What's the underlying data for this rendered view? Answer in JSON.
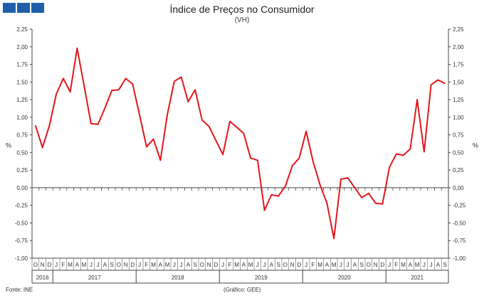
{
  "header": {
    "title": "Índice de Preços no Consumidor",
    "subtitle": "(VH)",
    "logo_color": "#1f5fa8"
  },
  "footer": {
    "source": "Fonte: INE",
    "credit": "(Gráfico: GEE)"
  },
  "chart_data": {
    "type": "line",
    "title": "Índice de Preços no Consumidor",
    "subtitle": "(VH)",
    "ylabel_left": "%",
    "ylabel_right": "%",
    "ylim": [
      -1.0,
      2.25
    ],
    "yticks": [
      "2,25",
      "2,00",
      "1,75",
      "1,50",
      "1,25",
      "1,00",
      "0,75",
      "0,50",
      "0,25",
      "0,00",
      "-0,25",
      "-0,50",
      "-0,75",
      "-1,00"
    ],
    "ytick_values": [
      2.25,
      2.0,
      1.75,
      1.5,
      1.25,
      1.0,
      0.75,
      0.5,
      0.25,
      0.0,
      -0.25,
      -0.5,
      -0.75,
      -1.0
    ],
    "grid": false,
    "x": [
      "O",
      "N",
      "D",
      "J",
      "F",
      "M",
      "A",
      "M",
      "J",
      "J",
      "A",
      "S",
      "O",
      "N",
      "D",
      "J",
      "F",
      "M",
      "A",
      "M",
      "J",
      "J",
      "A",
      "S",
      "O",
      "N",
      "D",
      "J",
      "F",
      "M",
      "A",
      "M",
      "J",
      "J",
      "A",
      "S",
      "O",
      "N",
      "D",
      "J",
      "F",
      "M",
      "A",
      "M",
      "J",
      "J",
      "A",
      "S",
      "O",
      "N",
      "D",
      "J",
      "F",
      "M",
      "A",
      "M",
      "J",
      "J",
      "A",
      "S"
    ],
    "years": [
      {
        "label": "2016",
        "start": 0,
        "count": 3
      },
      {
        "label": "2017",
        "start": 3,
        "count": 12
      },
      {
        "label": "2018",
        "start": 15,
        "count": 12
      },
      {
        "label": "2019",
        "start": 27,
        "count": 12
      },
      {
        "label": "2020",
        "start": 39,
        "count": 12
      },
      {
        "label": "2021",
        "start": 51,
        "count": 9
      }
    ],
    "series": [
      {
        "color": "#e3161b",
        "values": [
          0.88,
          0.57,
          0.88,
          1.33,
          1.55,
          1.36,
          1.98,
          1.45,
          0.91,
          0.9,
          1.13,
          1.38,
          1.39,
          1.55,
          1.47,
          1.03,
          0.58,
          0.69,
          0.39,
          1.04,
          1.51,
          1.57,
          1.22,
          1.39,
          0.96,
          0.87,
          0.67,
          0.47,
          0.94,
          0.86,
          0.77,
          0.42,
          0.39,
          -0.32,
          -0.1,
          -0.12,
          0.02,
          0.31,
          0.42,
          0.8,
          0.37,
          0.04,
          -0.22,
          -0.72,
          0.12,
          0.14,
          0.0,
          -0.14,
          -0.08,
          -0.22,
          -0.23,
          0.29,
          0.48,
          0.46,
          0.55,
          1.25,
          0.51,
          1.46,
          1.53,
          1.48
        ]
      }
    ]
  }
}
